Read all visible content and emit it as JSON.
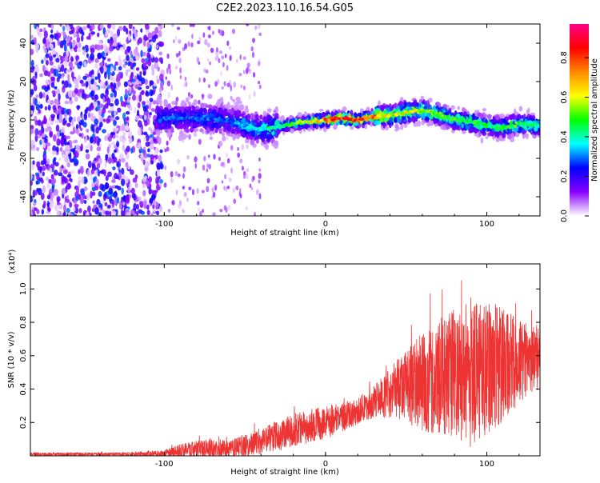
{
  "title": "C2E2.2023.110.16.54.G05",
  "chart_data": [
    {
      "type": "heatmap",
      "xlabel": "Height of straight line (km)",
      "ylabel": "Frequency (Hz)",
      "xlim": [
        -183,
        133
      ],
      "ylim": [
        -50,
        50
      ],
      "xticks": [
        -100,
        0,
        100
      ],
      "xtick_labels": [
        "-100",
        "0",
        "100"
      ],
      "yticks": [
        -40,
        -20,
        0,
        20,
        40
      ],
      "ytick_labels": [
        "-40",
        "-20",
        "0",
        "20",
        "40"
      ],
      "colorbar": {
        "label": "Normalized spectral amplitude",
        "range": [
          0,
          0.97
        ],
        "ticks": [
          0.0,
          0.2,
          0.4,
          0.6,
          0.8
        ],
        "tick_labels": [
          "0.0",
          "0.2",
          "0.4",
          "0.6",
          "0.8"
        ],
        "colors": [
          "#ffffff",
          "#8800ff",
          "#0000ff",
          "#00ffff",
          "#00ff00",
          "#ffff00",
          "#ff8800",
          "#ff0000",
          "#ff0088"
        ]
      },
      "ridge": {
        "x": [
          -100,
          -80,
          -60,
          -50,
          -40,
          -20,
          -10,
          0,
          10,
          20,
          30,
          40,
          50,
          60,
          70,
          80,
          90,
          100,
          110,
          120,
          133
        ],
        "y": [
          1,
          1,
          0,
          -3,
          -5,
          -2,
          -1,
          0,
          1,
          0,
          2,
          2,
          4,
          5,
          3,
          0,
          -1,
          -3,
          -4,
          -2,
          -3
        ],
        "peak": [
          0.3,
          0.3,
          0.3,
          0.35,
          0.4,
          0.5,
          0.6,
          0.8,
          0.85,
          0.85,
          0.75,
          0.6,
          0.65,
          0.6,
          0.55,
          0.5,
          0.5,
          0.45,
          0.5,
          0.5,
          0.45
        ]
      }
    },
    {
      "type": "line",
      "xlabel": "Height of straight line (km)",
      "ylabel": "SNR (10 * v/v)",
      "y_multiplier": "(x10⁴)",
      "xlim": [
        -183,
        133
      ],
      "ylim": [
        0,
        1.15
      ],
      "xticks": [
        -100,
        0,
        100
      ],
      "xtick_labels": [
        "-100",
        "0",
        "100"
      ],
      "yticks": [
        0.2,
        0.4,
        0.6,
        0.8,
        1.0
      ],
      "ytick_labels": [
        "0.2",
        "0.4",
        "0.6",
        "0.8",
        "1.0"
      ],
      "color": "#ee3333",
      "envelope": {
        "x": [
          -183,
          -130,
          -100,
          -90,
          -80,
          -70,
          -60,
          -50,
          -40,
          -30,
          -20,
          -10,
          0,
          10,
          20,
          30,
          40,
          50,
          60,
          70,
          80,
          90,
          100,
          110,
          120,
          133
        ],
        "mean": [
          0.01,
          0.01,
          0.015,
          0.03,
          0.04,
          0.05,
          0.04,
          0.06,
          0.09,
          0.12,
          0.15,
          0.18,
          0.2,
          0.23,
          0.27,
          0.32,
          0.38,
          0.42,
          0.44,
          0.47,
          0.5,
          0.5,
          0.52,
          0.55,
          0.56,
          0.6
        ],
        "amp": [
          0.01,
          0.01,
          0.02,
          0.04,
          0.05,
          0.06,
          0.05,
          0.07,
          0.08,
          0.09,
          0.1,
          0.1,
          0.1,
          0.09,
          0.08,
          0.1,
          0.15,
          0.22,
          0.3,
          0.35,
          0.4,
          0.45,
          0.4,
          0.35,
          0.25,
          0.2
        ]
      }
    }
  ]
}
